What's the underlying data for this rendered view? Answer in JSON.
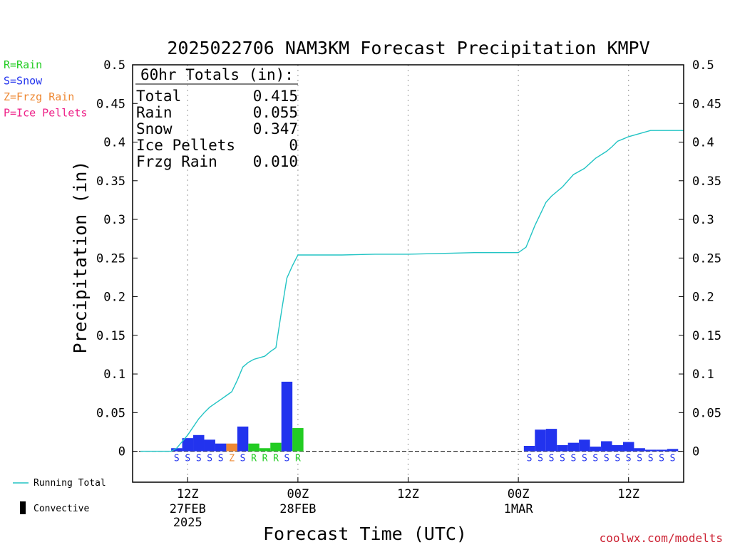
{
  "chart_data": {
    "type": "bar",
    "title": "2025022706 NAM3KM Forecast Precipitation KMPV",
    "xlabel": "Forecast Time (UTC)",
    "ylabel": "Precipitation (in)",
    "ylim": [
      -0.04,
      0.5
    ],
    "y_ticks": [
      "0",
      "0.05",
      "0.1",
      "0.15",
      "0.2",
      "0.25",
      "0.3",
      "0.35",
      "0.4",
      "0.45",
      "0.5"
    ],
    "xlim_hours": [
      -5,
      45
    ],
    "x_ticks": [
      {
        "hour": 0,
        "label": "12Z",
        "sub1": "27FEB",
        "sub2": "2025"
      },
      {
        "hour": 10,
        "label": "00Z",
        "sub1": "28FEB",
        "sub2": ""
      },
      {
        "hour": 20,
        "label": "12Z",
        "sub1": "",
        "sub2": ""
      },
      {
        "hour": 30,
        "label": "00Z",
        "sub1": "1MAR",
        "sub2": ""
      },
      {
        "hour": 40,
        "label": "12Z",
        "sub1": "",
        "sub2": ""
      }
    ],
    "grid": "vertical-dotted",
    "legend_types": [
      {
        "label": "R=Rain",
        "color": "#22cc22"
      },
      {
        "label": "S=Snow",
        "color": "#2233ee"
      },
      {
        "label": "Z=Frzg Rain",
        "color": "#ee8833"
      },
      {
        "label": "P=Ice Pellets",
        "color": "#ee2288"
      }
    ],
    "legend_bottom": {
      "running_total": "Running Total",
      "convective": "Convective"
    },
    "type_colors": {
      "R": "#22cc22",
      "S": "#2233ee",
      "Z": "#ee8833",
      "P": "#ee2288",
      "running": "#22c4c4"
    },
    "totals_header": "60hr Totals (in):",
    "totals": [
      {
        "label": "Total",
        "value": "0.415"
      },
      {
        "label": "Rain",
        "value": "0.055"
      },
      {
        "label": "Snow",
        "value": "0.347"
      },
      {
        "label": "Ice Pellets",
        "value": "0"
      },
      {
        "label": "Frzg Rain",
        "value": "0.010"
      }
    ],
    "bars": [
      {
        "hour": -1,
        "value": 0.004,
        "type": "S"
      },
      {
        "hour": 0,
        "value": 0.017,
        "type": "S"
      },
      {
        "hour": 1,
        "value": 0.021,
        "type": "S"
      },
      {
        "hour": 2,
        "value": 0.015,
        "type": "S"
      },
      {
        "hour": 3,
        "value": 0.01,
        "type": "S"
      },
      {
        "hour": 4,
        "value": 0.01,
        "type": "Z"
      },
      {
        "hour": 5,
        "value": 0.032,
        "type": "S"
      },
      {
        "hour": 6,
        "value": 0.01,
        "type": "R"
      },
      {
        "hour": 7,
        "value": 0.004,
        "type": "R"
      },
      {
        "hour": 8,
        "value": 0.011,
        "type": "R"
      },
      {
        "hour": 9,
        "value": 0.09,
        "type": "S"
      },
      {
        "hour": 10,
        "value": 0.03,
        "type": "R"
      },
      {
        "hour": 31,
        "value": 0.007,
        "type": "S"
      },
      {
        "hour": 32,
        "value": 0.028,
        "type": "S"
      },
      {
        "hour": 33,
        "value": 0.029,
        "type": "S"
      },
      {
        "hour": 34,
        "value": 0.008,
        "type": "S"
      },
      {
        "hour": 35,
        "value": 0.011,
        "type": "S"
      },
      {
        "hour": 36,
        "value": 0.015,
        "type": "S"
      },
      {
        "hour": 37,
        "value": 0.006,
        "type": "S"
      },
      {
        "hour": 38,
        "value": 0.013,
        "type": "S"
      },
      {
        "hour": 39,
        "value": 0.008,
        "type": "S"
      },
      {
        "hour": 40,
        "value": 0.012,
        "type": "S"
      },
      {
        "hour": 41,
        "value": 0.004,
        "type": "S"
      },
      {
        "hour": 42,
        "value": 0.002,
        "type": "S"
      },
      {
        "hour": 43,
        "value": 0.002,
        "type": "S"
      },
      {
        "hour": 44,
        "value": 0.003,
        "type": "S"
      }
    ],
    "ptype_labels": [
      {
        "hour": -1,
        "label": "S"
      },
      {
        "hour": 0,
        "label": "S"
      },
      {
        "hour": 1,
        "label": "S"
      },
      {
        "hour": 2,
        "label": "S"
      },
      {
        "hour": 3,
        "label": "S"
      },
      {
        "hour": 4,
        "label": "Z"
      },
      {
        "hour": 5,
        "label": "S"
      },
      {
        "hour": 6,
        "label": "R"
      },
      {
        "hour": 7,
        "label": "R"
      },
      {
        "hour": 8,
        "label": "R"
      },
      {
        "hour": 9,
        "label": "S"
      },
      {
        "hour": 10,
        "label": "R"
      },
      {
        "hour": 31,
        "label": "S"
      },
      {
        "hour": 32,
        "label": "S"
      },
      {
        "hour": 33,
        "label": "S"
      },
      {
        "hour": 34,
        "label": "S"
      },
      {
        "hour": 35,
        "label": "S"
      },
      {
        "hour": 36,
        "label": "S"
      },
      {
        "hour": 37,
        "label": "S"
      },
      {
        "hour": 38,
        "label": "S"
      },
      {
        "hour": 39,
        "label": "S"
      },
      {
        "hour": 40,
        "label": "S"
      },
      {
        "hour": 41,
        "label": "S"
      },
      {
        "hour": 42,
        "label": "S"
      },
      {
        "hour": 43,
        "label": "S"
      },
      {
        "hour": 44,
        "label": "S"
      }
    ],
    "running_total": {
      "hours": [
        -4.3,
        -1.5,
        -1,
        0,
        1,
        1.5,
        2,
        2.5,
        3,
        3.5,
        4,
        4.5,
        5,
        5.5,
        6,
        6.5,
        7,
        7.5,
        8,
        8.5,
        9,
        9.5,
        10,
        10.5,
        14,
        17,
        20,
        23,
        26,
        29,
        30,
        30.7,
        31.5,
        32.5,
        33,
        34,
        35,
        36,
        37,
        38,
        38.5,
        39,
        39.5,
        40,
        41,
        42,
        43,
        44,
        45
      ],
      "values": [
        0,
        0,
        0.004,
        0.021,
        0.042,
        0.05,
        0.057,
        0.062,
        0.067,
        0.072,
        0.077,
        0.092,
        0.109,
        0.115,
        0.119,
        0.121,
        0.123,
        0.129,
        0.134,
        0.18,
        0.224,
        0.24,
        0.254,
        0.254,
        0.254,
        0.255,
        0.255,
        0.256,
        0.257,
        0.257,
        0.257,
        0.264,
        0.292,
        0.322,
        0.33,
        0.342,
        0.358,
        0.366,
        0.379,
        0.388,
        0.394,
        0.401,
        0.404,
        0.407,
        0.411,
        0.415,
        0.415,
        0.415,
        0.415
      ]
    },
    "credit": "coolwx.com/modelts"
  }
}
